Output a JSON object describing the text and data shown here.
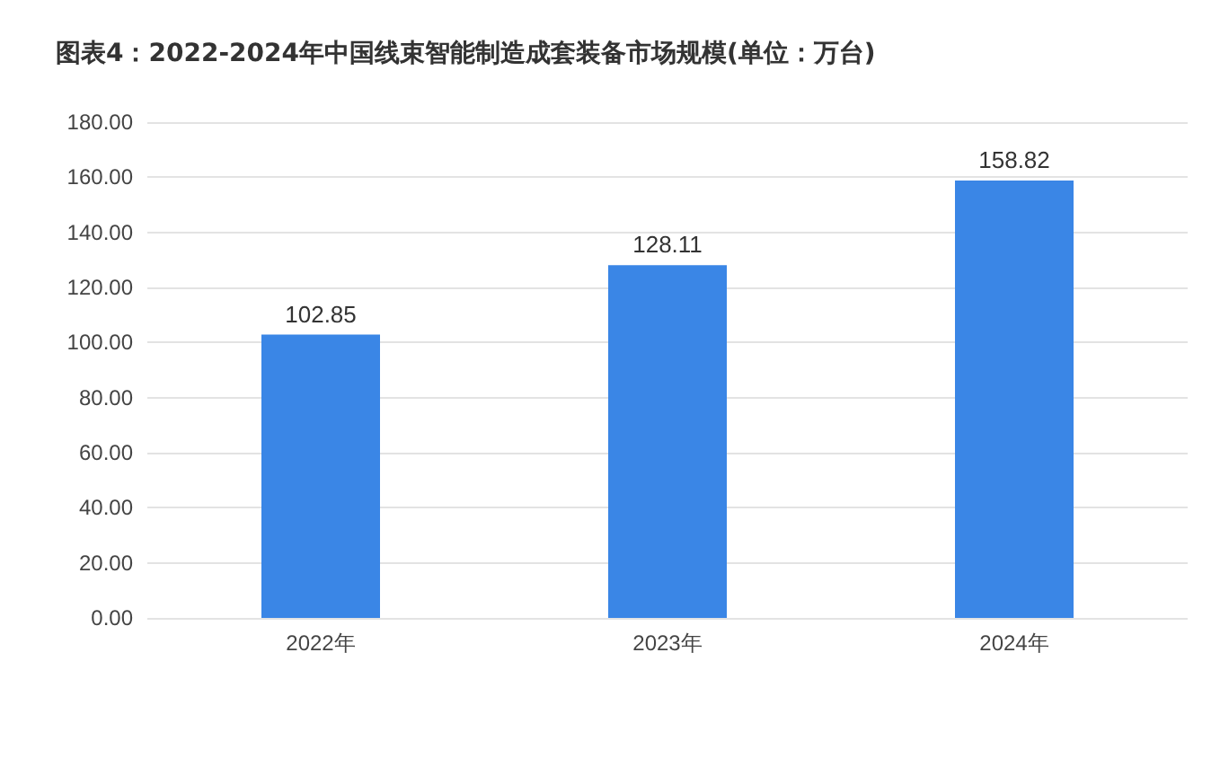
{
  "chart_data": {
    "type": "bar",
    "title": "图表4：2022-2024年中国线束智能制造成套装备市场规模(单位：万台)",
    "categories": [
      "2022年",
      "2023年",
      "2024年"
    ],
    "values": [
      102.85,
      128.11,
      158.82
    ],
    "color": "#3a86e6",
    "data_labels": true,
    "ylim": [
      0,
      180
    ],
    "yticks": [
      {
        "value": 0,
        "label": "0.00"
      },
      {
        "value": 20,
        "label": "20.00"
      },
      {
        "value": 40,
        "label": "40.00"
      },
      {
        "value": 60,
        "label": "60.00"
      },
      {
        "value": 80,
        "label": "80.00"
      },
      {
        "value": 100,
        "label": "100.00"
      },
      {
        "value": 120,
        "label": "120.00"
      },
      {
        "value": 140,
        "label": "140.00"
      },
      {
        "value": 160,
        "label": "160.00"
      },
      {
        "value": 180,
        "label": "180.00"
      }
    ],
    "grid": "y"
  }
}
